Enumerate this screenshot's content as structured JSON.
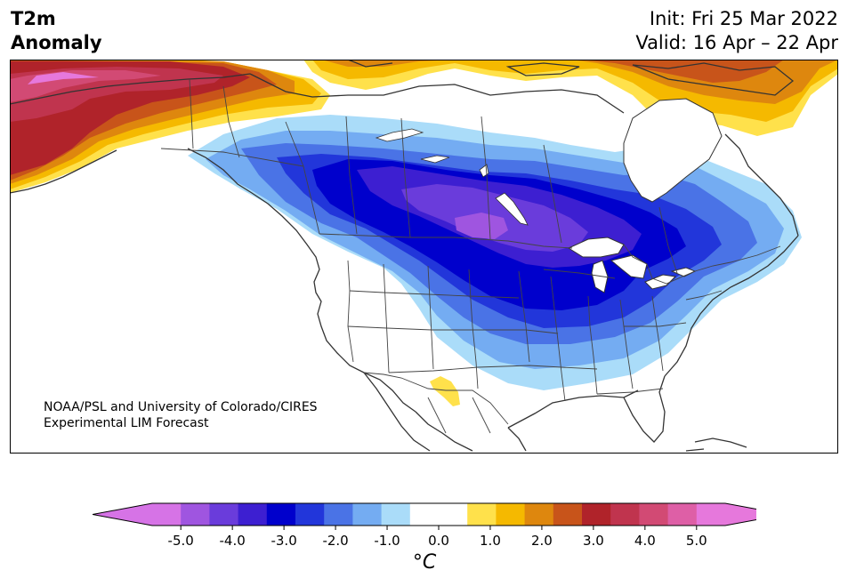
{
  "header": {
    "title_line1": "T2m",
    "title_line2": "Anomaly",
    "init_text": "Init: Fri 25 Mar 2022",
    "valid_text": "Valid: 16 Apr – 22 Apr"
  },
  "credit": {
    "line1": "NOAA/PSL and University of Colorado/CIRES",
    "line2": "Experimental LIM Forecast"
  },
  "colorbar": {
    "unit": "°C",
    "tick_labels": [
      "-5.0",
      "-4.0",
      "-3.0",
      "-2.0",
      "-1.0",
      "0.0",
      "1.0",
      "2.0",
      "3.0",
      "4.0",
      "5.0"
    ],
    "under_color": "#d673e6",
    "over_color": "#e678dc",
    "colors": [
      "#d673e6",
      "#9f55e0",
      "#6a3cdb",
      "#3d1fd1",
      "#0000cc",
      "#2236da",
      "#4a73e6",
      "#74acf2",
      "#aadcf9",
      "#ffffff",
      "#ffffff",
      "#ffe14b",
      "#f5b900",
      "#de870e",
      "#c8541a",
      "#b0232a",
      "#c0344e",
      "#d24a74",
      "#de5fa6",
      "#e678dc"
    ]
  }
}
